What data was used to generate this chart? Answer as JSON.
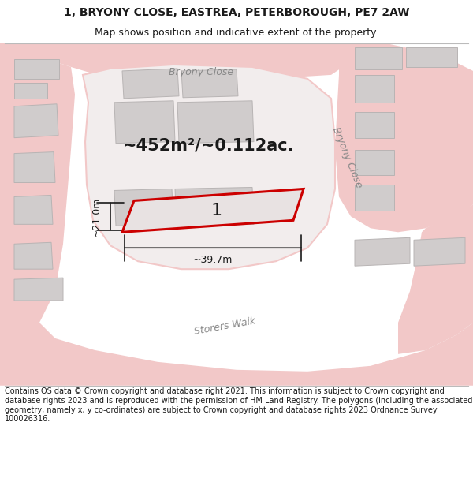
{
  "title_line1": "1, BRYONY CLOSE, EASTREA, PETERBOROUGH, PE7 2AW",
  "title_line2": "Map shows position and indicative extent of the property.",
  "footer": "Contains OS data © Crown copyright and database right 2021. This information is subject to Crown copyright and database rights 2023 and is reproduced with the permission of HM Land Registry. The polygons (including the associated geometry, namely x, y co-ordinates) are subject to Crown copyright and database rights 2023 Ordnance Survey 100026316.",
  "area_label": "~452m²/~0.112ac.",
  "plot_number": "1",
  "dim_width": "~39.7m",
  "dim_height": "~21.0m",
  "road_label_top": "Bryony Close",
  "road_label_right": "Bryony Close",
  "road_label_bottom": "Storers Walk",
  "bg_white": "#ffffff",
  "map_bg": "#f7f2f2",
  "road_color": "#f2c8c8",
  "road_outline": "#e8a0a0",
  "building_fill": "#d0cccc",
  "building_outline": "#b8b4b4",
  "plot_fill": "#e8e2e2",
  "plot_red": "#cc0000",
  "text_dark": "#1a1a1a",
  "text_road": "#888888",
  "title_fontsize": 10,
  "subtitle_fontsize": 9,
  "footer_fontsize": 7,
  "area_fontsize": 15,
  "plot_num_fontsize": 16,
  "road_fontsize": 9,
  "dim_fontsize": 9
}
